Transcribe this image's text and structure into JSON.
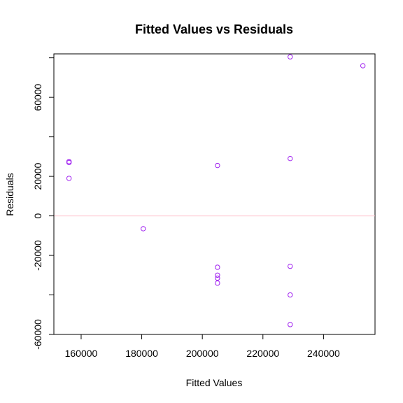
{
  "chart_data": {
    "type": "scatter",
    "title": "Fitted Values vs Residuals",
    "xlabel": "Fitted Values",
    "ylabel": "Residuals",
    "xlim": [
      151000,
      257000
    ],
    "ylim": [
      -60000,
      82000
    ],
    "x_ticks": [
      160000,
      180000,
      200000,
      220000,
      240000
    ],
    "y_ticks": [
      -60000,
      -40000,
      -20000,
      0,
      20000,
      40000,
      60000,
      80000
    ],
    "x_tick_labels": [
      "160000",
      "180000",
      "200000",
      "220000",
      "240000"
    ],
    "y_tick_labels": [
      "-60000",
      "",
      "-20000",
      "0",
      "20000",
      "",
      "60000",
      ""
    ],
    "reference_line": {
      "y": 0,
      "color": "#ffc0cb"
    },
    "point_color": "#a020f0",
    "grid": false,
    "points": [
      {
        "x": 156000,
        "y": 27500
      },
      {
        "x": 156000,
        "y": 27000
      },
      {
        "x": 156000,
        "y": 19000
      },
      {
        "x": 180500,
        "y": -6500
      },
      {
        "x": 205000,
        "y": 25500
      },
      {
        "x": 205000,
        "y": -26000
      },
      {
        "x": 205000,
        "y": -30000
      },
      {
        "x": 205000,
        "y": -31500
      },
      {
        "x": 205000,
        "y": -34000
      },
      {
        "x": 229000,
        "y": 80500
      },
      {
        "x": 229000,
        "y": 29000
      },
      {
        "x": 229000,
        "y": -25500
      },
      {
        "x": 229000,
        "y": -40000
      },
      {
        "x": 229000,
        "y": -55000
      },
      {
        "x": 253000,
        "y": 76000
      }
    ]
  }
}
